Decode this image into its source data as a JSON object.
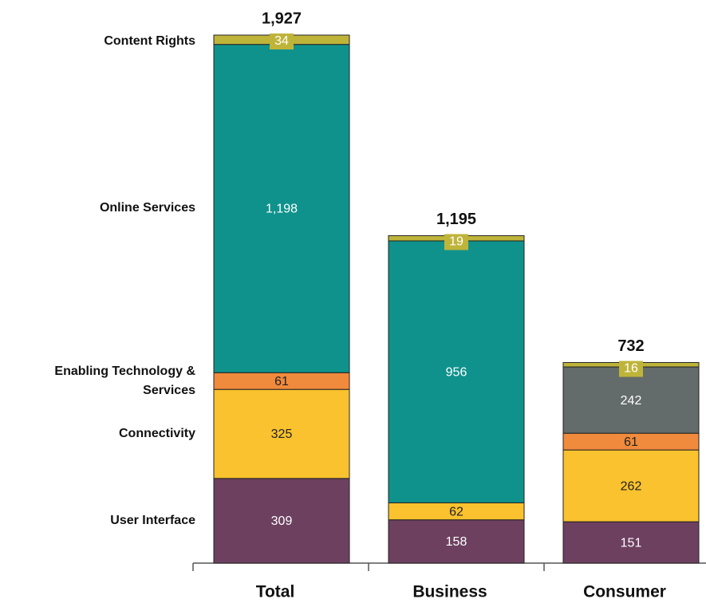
{
  "chart_data": {
    "type": "stacked_bar",
    "categories": [
      "Total",
      "Business",
      "Consumer"
    ],
    "series": [
      {
        "name": "User Interface",
        "color": "#6d4060",
        "values": [
          309,
          158,
          151
        ]
      },
      {
        "name": "Connectivity",
        "color": "#f9c22e",
        "values": [
          325,
          62,
          262
        ]
      },
      {
        "name": "Enabling Technology & Services",
        "color": "#f08a3c",
        "values": [
          61,
          null,
          61
        ]
      },
      {
        "name": "Online Services",
        "color": "#10928c",
        "colors": [
          "#10928c",
          "#10928c",
          "#646b6b"
        ],
        "values": [
          1198,
          956,
          242
        ],
        "value_labels": [
          "1,198",
          "956",
          "242"
        ]
      },
      {
        "name": "Content Rights",
        "color": "#bfb43a",
        "values": [
          34,
          19,
          16
        ]
      }
    ],
    "totals": [
      1927,
      1195,
      732
    ],
    "total_labels": [
      "1,927",
      "1,195",
      "732"
    ]
  }
}
